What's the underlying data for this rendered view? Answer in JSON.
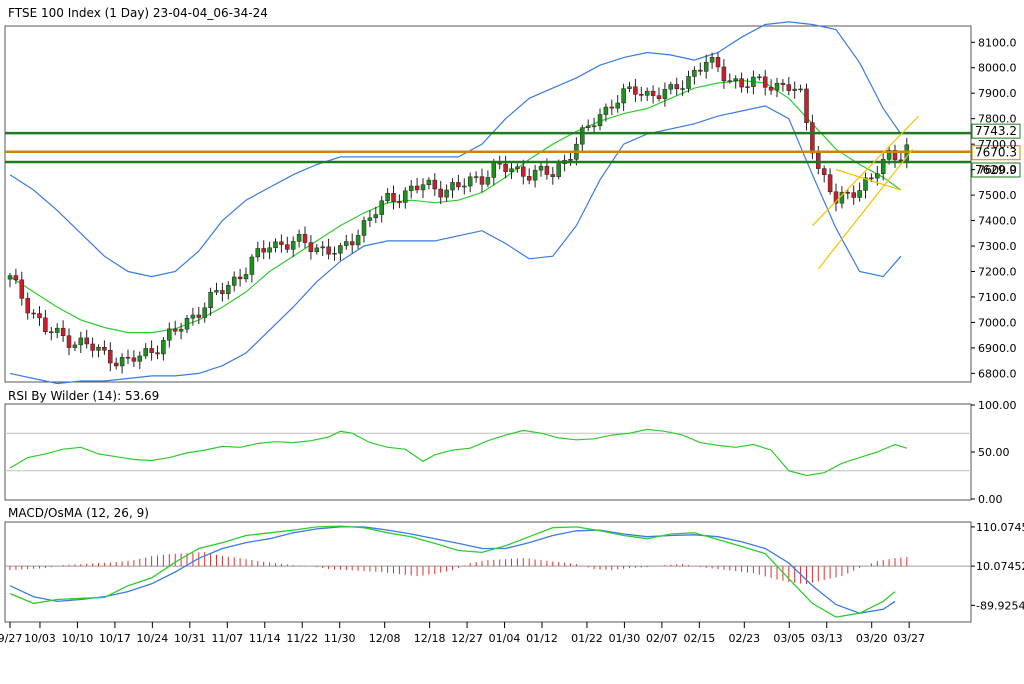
{
  "chart_data": [
    {
      "type": "candlestick",
      "title": "FTSE 100 Index (1 Day) 23-04-04_06-34-24",
      "yticks": [
        "8100.0",
        "8000.0",
        "7900.0",
        "7800.0",
        "7700.0",
        "7600.0",
        "7500.0",
        "7400.0",
        "7300.0",
        "7200.0",
        "7100.0",
        "7000.0",
        "6900.0",
        "6800.0"
      ],
      "ylim": [
        6770,
        8160
      ],
      "price_labels": [
        "7743.2",
        "7670.3",
        "7629.9"
      ],
      "hlines": [
        {
          "value": 7743.2,
          "color": "#1f7a1f"
        },
        {
          "value": 7670.3,
          "color": "#c8860d"
        },
        {
          "value": 7629.9,
          "color": "#1f7a1f"
        }
      ],
      "colors": {
        "up": "#1f8f1f",
        "down": "#c8202a",
        "ma": "#2ecc2e",
        "bands": "#3a7be0",
        "channel": "#f2c200"
      },
      "ma_points": [
        [
          0,
          7180
        ],
        [
          4,
          7120
        ],
        [
          8,
          7060
        ],
        [
          12,
          7010
        ],
        [
          16,
          6980
        ],
        [
          20,
          6960
        ],
        [
          24,
          6960
        ],
        [
          28,
          6975
        ],
        [
          32,
          7010
        ],
        [
          36,
          7060
        ],
        [
          40,
          7120
        ],
        [
          44,
          7200
        ],
        [
          48,
          7260
        ],
        [
          52,
          7320
        ],
        [
          56,
          7380
        ],
        [
          60,
          7430
        ],
        [
          64,
          7470
        ],
        [
          68,
          7480
        ],
        [
          72,
          7470
        ],
        [
          76,
          7480
        ],
        [
          80,
          7510
        ],
        [
          84,
          7570
        ],
        [
          88,
          7640
        ],
        [
          92,
          7700
        ],
        [
          96,
          7750
        ],
        [
          100,
          7790
        ],
        [
          104,
          7820
        ],
        [
          108,
          7840
        ],
        [
          112,
          7880
        ],
        [
          116,
          7920
        ],
        [
          120,
          7940
        ],
        [
          124,
          7950
        ],
        [
          128,
          7940
        ],
        [
          132,
          7880
        ],
        [
          136,
          7780
        ],
        [
          140,
          7680
        ],
        [
          144,
          7620
        ],
        [
          148,
          7570
        ],
        [
          151,
          7520
        ]
      ],
      "upper_band": [
        [
          0,
          7580
        ],
        [
          4,
          7520
        ],
        [
          8,
          7440
        ],
        [
          12,
          7350
        ],
        [
          16,
          7260
        ],
        [
          20,
          7200
        ],
        [
          24,
          7180
        ],
        [
          28,
          7200
        ],
        [
          32,
          7280
        ],
        [
          36,
          7400
        ],
        [
          40,
          7480
        ],
        [
          44,
          7530
        ],
        [
          48,
          7580
        ],
        [
          52,
          7620
        ],
        [
          56,
          7650
        ],
        [
          60,
          7650
        ],
        [
          64,
          7650
        ],
        [
          68,
          7650
        ],
        [
          72,
          7650
        ],
        [
          76,
          7650
        ],
        [
          80,
          7700
        ],
        [
          84,
          7800
        ],
        [
          88,
          7880
        ],
        [
          92,
          7920
        ],
        [
          96,
          7960
        ],
        [
          100,
          8010
        ],
        [
          104,
          8040
        ],
        [
          108,
          8060
        ],
        [
          112,
          8050
        ],
        [
          116,
          8030
        ],
        [
          120,
          8060
        ],
        [
          124,
          8120
        ],
        [
          128,
          8170
        ],
        [
          132,
          8180
        ],
        [
          136,
          8170
        ],
        [
          140,
          8150
        ],
        [
          144,
          8020
        ],
        [
          148,
          7840
        ],
        [
          151,
          7740
        ]
      ],
      "lower_band": [
        [
          0,
          6800
        ],
        [
          4,
          6780
        ],
        [
          8,
          6760
        ],
        [
          12,
          6770
        ],
        [
          16,
          6770
        ],
        [
          20,
          6780
        ],
        [
          24,
          6790
        ],
        [
          28,
          6790
        ],
        [
          32,
          6800
        ],
        [
          36,
          6830
        ],
        [
          40,
          6880
        ],
        [
          44,
          6970
        ],
        [
          48,
          7060
        ],
        [
          52,
          7160
        ],
        [
          56,
          7240
        ],
        [
          60,
          7300
        ],
        [
          64,
          7320
        ],
        [
          68,
          7320
        ],
        [
          72,
          7320
        ],
        [
          76,
          7340
        ],
        [
          80,
          7360
        ],
        [
          84,
          7310
        ],
        [
          88,
          7250
        ],
        [
          92,
          7260
        ],
        [
          96,
          7380
        ],
        [
          100,
          7560
        ],
        [
          104,
          7700
        ],
        [
          108,
          7740
        ],
        [
          112,
          7760
        ],
        [
          116,
          7780
        ],
        [
          120,
          7810
        ],
        [
          124,
          7830
        ],
        [
          128,
          7850
        ],
        [
          132,
          7800
        ],
        [
          136,
          7580
        ],
        [
          140,
          7370
        ],
        [
          144,
          7200
        ],
        [
          148,
          7180
        ],
        [
          151,
          7260
        ]
      ],
      "channel_lines": [
        {
          "from": [
            137,
            7210
          ],
          "to": [
            153,
            7680
          ]
        },
        {
          "from": [
            136,
            7380
          ],
          "to": [
            154,
            7810
          ]
        },
        {
          "from": [
            140,
            7600
          ],
          "to": [
            151,
            7520
          ]
        }
      ]
    },
    {
      "type": "line",
      "title": "RSI By Wilder (14): 53.69",
      "yticks": [
        "100.00",
        "50.00",
        "0.00"
      ],
      "ylim": [
        0,
        100
      ],
      "levels": [
        70,
        30
      ],
      "points": [
        [
          0,
          33
        ],
        [
          3,
          44
        ],
        [
          6,
          48
        ],
        [
          9,
          53
        ],
        [
          12,
          55
        ],
        [
          15,
          48
        ],
        [
          18,
          45
        ],
        [
          21,
          42
        ],
        [
          24,
          41
        ],
        [
          27,
          44
        ],
        [
          30,
          49
        ],
        [
          33,
          52
        ],
        [
          36,
          56
        ],
        [
          39,
          55
        ],
        [
          42,
          59
        ],
        [
          45,
          61
        ],
        [
          48,
          60
        ],
        [
          51,
          62
        ],
        [
          54,
          66
        ],
        [
          56,
          72
        ],
        [
          58,
          70
        ],
        [
          61,
          60
        ],
        [
          64,
          55
        ],
        [
          67,
          53
        ],
        [
          70,
          40
        ],
        [
          72,
          47
        ],
        [
          75,
          52
        ],
        [
          78,
          54
        ],
        [
          81,
          62
        ],
        [
          84,
          68
        ],
        [
          87,
          73
        ],
        [
          90,
          70
        ],
        [
          93,
          65
        ],
        [
          96,
          63
        ],
        [
          99,
          64
        ],
        [
          102,
          68
        ],
        [
          105,
          70
        ],
        [
          108,
          74
        ],
        [
          111,
          72
        ],
        [
          114,
          68
        ],
        [
          117,
          60
        ],
        [
          120,
          57
        ],
        [
          123,
          55
        ],
        [
          126,
          58
        ],
        [
          129,
          52
        ],
        [
          132,
          30
        ],
        [
          135,
          25
        ],
        [
          138,
          28
        ],
        [
          141,
          38
        ],
        [
          144,
          44
        ],
        [
          147,
          50
        ],
        [
          150,
          58
        ],
        [
          152,
          54
        ]
      ]
    },
    {
      "type": "macd",
      "title": "MACD/OsMA (12, 26, 9)",
      "yticks": [
        "110.07452",
        "10.07452",
        "-89.92548"
      ],
      "ylim": [
        -129.9,
        120
      ],
      "macd": [
        [
          0,
          -60
        ],
        [
          4,
          -85
        ],
        [
          8,
          -75
        ],
        [
          12,
          -72
        ],
        [
          16,
          -70
        ],
        [
          20,
          -40
        ],
        [
          24,
          -20
        ],
        [
          28,
          20
        ],
        [
          32,
          55
        ],
        [
          36,
          70
        ],
        [
          40,
          88
        ],
        [
          44,
          95
        ],
        [
          48,
          102
        ],
        [
          52,
          110
        ],
        [
          56,
          112
        ],
        [
          60,
          108
        ],
        [
          64,
          95
        ],
        [
          68,
          85
        ],
        [
          72,
          68
        ],
        [
          76,
          50
        ],
        [
          80,
          45
        ],
        [
          84,
          62
        ],
        [
          88,
          85
        ],
        [
          92,
          108
        ],
        [
          96,
          110
        ],
        [
          100,
          100
        ],
        [
          104,
          88
        ],
        [
          108,
          80
        ],
        [
          112,
          92
        ],
        [
          116,
          95
        ],
        [
          120,
          78
        ],
        [
          124,
          60
        ],
        [
          128,
          42
        ],
        [
          132,
          -22
        ],
        [
          136,
          -85
        ],
        [
          140,
          -120
        ],
        [
          144,
          -110
        ],
        [
          148,
          -80
        ],
        [
          150,
          -55
        ]
      ],
      "signal": [
        [
          0,
          -40
        ],
        [
          4,
          -68
        ],
        [
          8,
          -80
        ],
        [
          12,
          -75
        ],
        [
          16,
          -68
        ],
        [
          20,
          -55
        ],
        [
          24,
          -35
        ],
        [
          28,
          -5
        ],
        [
          32,
          30
        ],
        [
          36,
          55
        ],
        [
          40,
          70
        ],
        [
          44,
          80
        ],
        [
          48,
          95
        ],
        [
          52,
          105
        ],
        [
          56,
          110
        ],
        [
          60,
          110
        ],
        [
          64,
          102
        ],
        [
          68,
          92
        ],
        [
          72,
          80
        ],
        [
          76,
          68
        ],
        [
          80,
          55
        ],
        [
          84,
          55
        ],
        [
          88,
          70
        ],
        [
          92,
          88
        ],
        [
          96,
          100
        ],
        [
          100,
          102
        ],
        [
          104,
          92
        ],
        [
          108,
          85
        ],
        [
          112,
          88
        ],
        [
          116,
          90
        ],
        [
          120,
          85
        ],
        [
          124,
          72
        ],
        [
          128,
          55
        ],
        [
          132,
          18
        ],
        [
          136,
          -40
        ],
        [
          140,
          -88
        ],
        [
          144,
          -110
        ],
        [
          148,
          -100
        ],
        [
          150,
          -80
        ]
      ],
      "osma": [
        [
          0,
          -4
        ],
        [
          3,
          -3
        ],
        [
          6,
          -2
        ],
        [
          9,
          1
        ],
        [
          12,
          2
        ],
        [
          15,
          3
        ],
        [
          18,
          4
        ],
        [
          21,
          6
        ],
        [
          24,
          10
        ],
        [
          27,
          12
        ],
        [
          30,
          13
        ],
        [
          33,
          14
        ],
        [
          36,
          10
        ],
        [
          39,
          8
        ],
        [
          42,
          5
        ],
        [
          45,
          3
        ],
        [
          48,
          1
        ],
        [
          51,
          0
        ],
        [
          54,
          -3
        ],
        [
          57,
          -4
        ],
        [
          60,
          -5
        ],
        [
          63,
          -6
        ],
        [
          66,
          -8
        ],
        [
          69,
          -10
        ],
        [
          72,
          -8
        ],
        [
          75,
          -4
        ],
        [
          78,
          3
        ],
        [
          81,
          6
        ],
        [
          84,
          7
        ],
        [
          87,
          8
        ],
        [
          90,
          6
        ],
        [
          93,
          4
        ],
        [
          96,
          2
        ],
        [
          99,
          -3
        ],
        [
          102,
          -4
        ],
        [
          105,
          -2
        ],
        [
          108,
          -1
        ],
        [
          111,
          1
        ],
        [
          114,
          2
        ],
        [
          117,
          -1
        ],
        [
          120,
          -3
        ],
        [
          123,
          -5
        ],
        [
          126,
          -7
        ],
        [
          129,
          -12
        ],
        [
          132,
          -16
        ],
        [
          135,
          -18
        ],
        [
          138,
          -14
        ],
        [
          141,
          -10
        ],
        [
          144,
          -2
        ],
        [
          147,
          5
        ],
        [
          150,
          8
        ],
        [
          152,
          9
        ]
      ]
    }
  ],
  "x_axis": {
    "labels": [
      "9/27",
      "10/03",
      "10/10",
      "10/17",
      "10/24",
      "10/31",
      "11/07",
      "11/14",
      "11/22",
      "11/30",
      "12/08",
      "12/18",
      "12/27",
      "01/04",
      "01/12",
      "01/22",
      "01/30",
      "02/07",
      "02/15",
      "02/23",
      "03/05",
      "03/13",
      "03/20",
      "03/27"
    ],
    "indices": [
      0,
      4,
      9,
      14,
      19,
      24,
      29,
      34,
      39,
      44,
      50,
      56,
      61,
      66,
      71,
      77,
      82,
      87,
      92,
      98,
      104,
      109,
      115,
      120
    ]
  }
}
